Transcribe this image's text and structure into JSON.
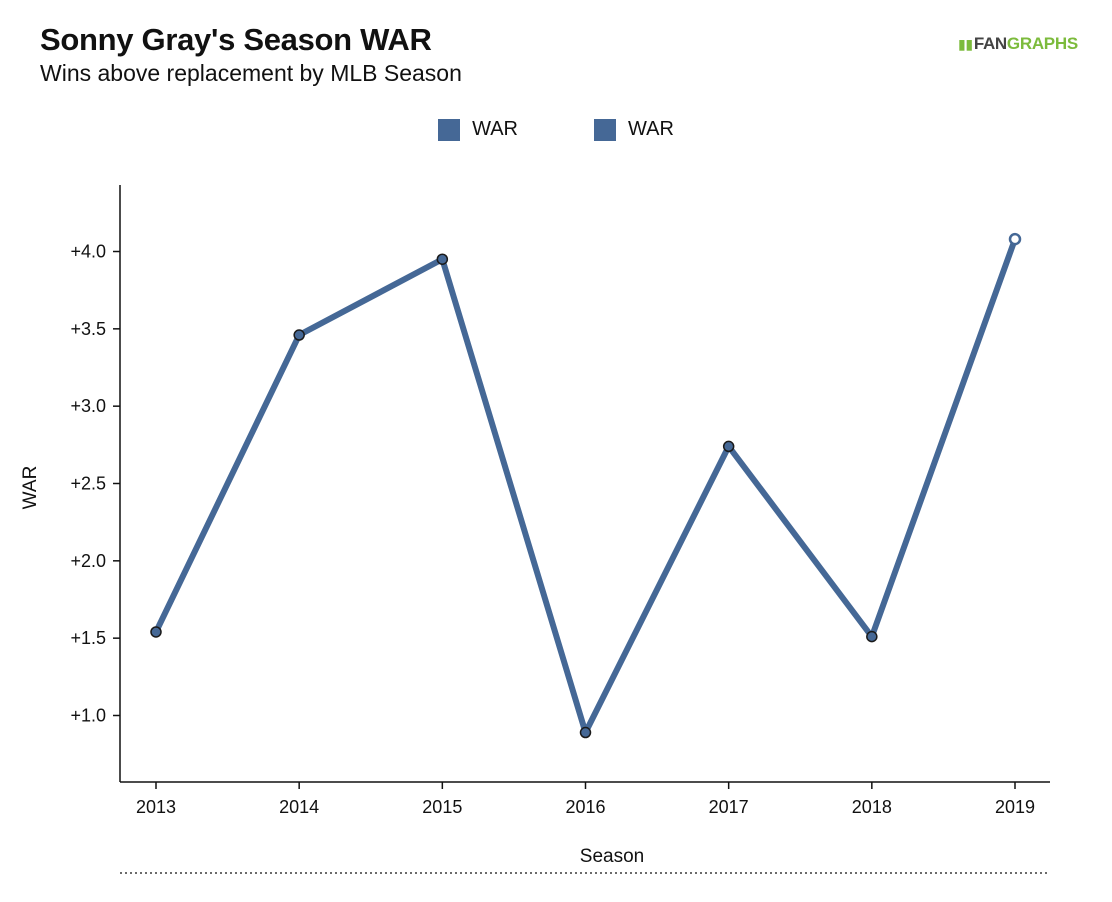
{
  "header": {
    "title": "Sonny Gray's Season WAR",
    "subtitle": "Wins above replacement by MLB Season",
    "logo_fan": "FAN",
    "logo_graphs": "GRAPHS"
  },
  "colors": {
    "series": "#456896",
    "point_fill": "#456896",
    "point_stroke": "#1a1a1a",
    "projected_fill": "#ffffff",
    "axis": "#111111",
    "logo_green": "#7cbb3c"
  },
  "chart_data": {
    "type": "line",
    "title": "Sonny Gray's Season WAR",
    "subtitle": "Wins above replacement by MLB Season",
    "xlabel": "Season",
    "ylabel": "WAR",
    "x": [
      "2013",
      "2014",
      "2015",
      "2016",
      "2017",
      "2018",
      "2019"
    ],
    "series": [
      {
        "name": "WAR",
        "values": [
          1.54,
          3.46,
          3.95,
          0.89,
          2.74,
          1.51,
          4.08
        ],
        "projected": [
          false,
          false,
          false,
          false,
          false,
          false,
          true
        ]
      }
    ],
    "legend": [
      "WAR",
      "WAR"
    ],
    "legend_position": "top-center",
    "yticks": [
      1.0,
      1.5,
      2.0,
      2.5,
      3.0,
      3.5,
      4.0
    ],
    "ytick_labels": [
      "+1.0",
      "+1.5",
      "+2.0",
      "+2.5",
      "+3.0",
      "+3.5",
      "+4.0"
    ],
    "ylim": [
      0.57,
      4.43
    ],
    "grid": false
  }
}
